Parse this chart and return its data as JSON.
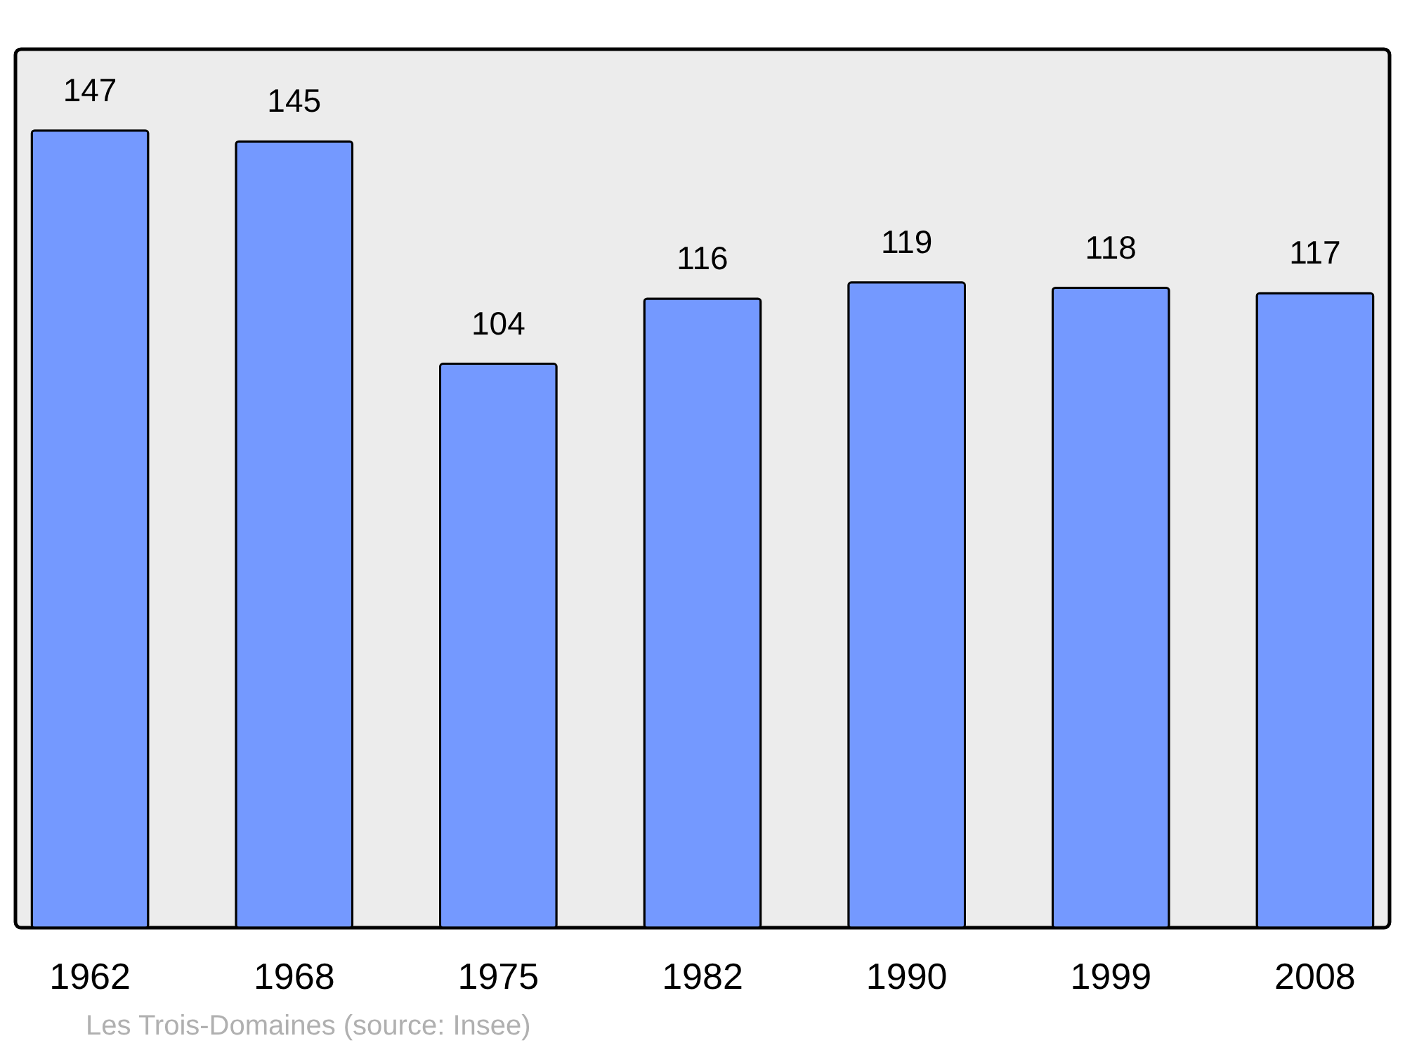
{
  "chart_data": {
    "type": "bar",
    "categories": [
      "1962",
      "1968",
      "1975",
      "1982",
      "1990",
      "1999",
      "2008"
    ],
    "values": [
      147,
      145,
      104,
      116,
      119,
      118,
      117
    ],
    "color": "#7499ff",
    "ylim": [
      0,
      162
    ],
    "tick_labels": "x",
    "data_labels": true,
    "grid": false,
    "annotations": [
      "Les Trois-Domaines    (source: Insee)"
    ]
  }
}
